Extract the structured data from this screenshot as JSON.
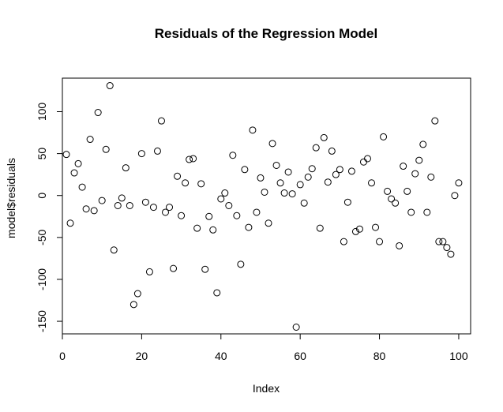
{
  "chart_data": {
    "type": "scatter",
    "title": "Residuals of the Regression Model",
    "xlabel": "Index",
    "ylabel": "model$residuals",
    "xlim": [
      0,
      103
    ],
    "ylim": [
      -165,
      140
    ],
    "xticks": [
      0,
      20,
      40,
      60,
      80,
      100
    ],
    "yticks": [
      -150,
      -100,
      -50,
      0,
      50,
      100
    ],
    "xtick_labels": [
      "0",
      "20",
      "40",
      "60",
      "80",
      "100"
    ],
    "ytick_labels": [
      "-150",
      "-100",
      "-50",
      "0",
      "50",
      "100"
    ],
    "grid": false,
    "marker": "open-circle",
    "x": [
      1,
      2,
      3,
      4,
      5,
      6,
      7,
      8,
      9,
      10,
      11,
      12,
      13,
      14,
      15,
      16,
      17,
      18,
      19,
      20,
      21,
      22,
      23,
      24,
      25,
      26,
      27,
      28,
      29,
      30,
      31,
      32,
      33,
      34,
      35,
      36,
      37,
      38,
      39,
      40,
      41,
      42,
      43,
      44,
      45,
      46,
      47,
      48,
      49,
      50,
      51,
      52,
      53,
      54,
      55,
      56,
      57,
      58,
      59,
      60,
      61,
      62,
      63,
      64,
      65,
      66,
      67,
      68,
      69,
      70,
      71,
      72,
      73,
      74,
      75,
      76,
      77,
      78,
      79,
      80,
      81,
      82,
      83,
      84,
      85,
      86,
      87,
      88,
      89,
      90,
      91,
      92,
      93,
      94,
      95,
      96,
      97,
      98,
      99,
      100
    ],
    "y": [
      49,
      -33,
      27,
      38,
      10,
      -16,
      67,
      -18,
      99,
      -6,
      55,
      131,
      -65,
      -12,
      -3,
      33,
      -12,
      -130,
      -117,
      50,
      -8,
      -91,
      -14,
      53,
      89,
      -20,
      -14,
      -87,
      23,
      -24,
      15,
      43,
      44,
      -39,
      14,
      -88,
      -25,
      -41,
      -116,
      -4,
      3,
      -12,
      48,
      -24,
      -82,
      31,
      -38,
      78,
      -20,
      21,
      4,
      -33,
      62,
      36,
      15,
      3,
      28,
      2,
      -157,
      13,
      -9,
      22,
      32,
      57,
      -39,
      69,
      16,
      53,
      25,
      31,
      -55,
      -8,
      29,
      -43,
      -40,
      40,
      44,
      15,
      -38,
      -55,
      70,
      5,
      -4,
      -9,
      -60,
      35,
      5,
      -20,
      26,
      42,
      61,
      -20,
      22,
      89,
      -55,
      -55,
      -62,
      -70,
      0,
      15
    ]
  }
}
